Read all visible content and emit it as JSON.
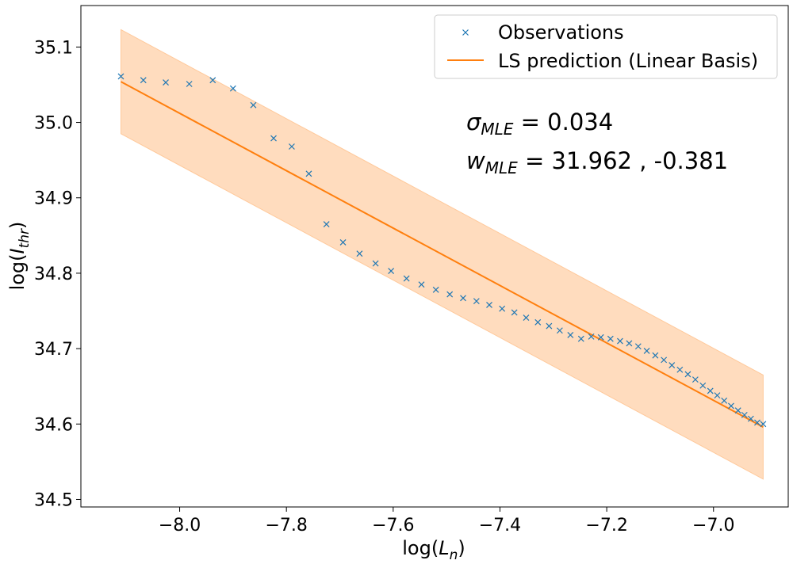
{
  "colors": {
    "observations": "#1f77b4",
    "prediction": "#ff7f0e",
    "band": "#ffdcbe",
    "band_edge": "#ffc99b"
  },
  "chart_data": {
    "type": "line",
    "xlabel": {
      "main": "log(",
      "var": "L",
      "sub": "n",
      "close": ")"
    },
    "ylabel": {
      "main": "log(",
      "var": "I",
      "sub": "thr",
      "close": ")"
    },
    "xlim": [
      -8.185,
      -6.86
    ],
    "ylim": [
      34.49,
      35.155
    ],
    "x_ticks": [
      -8.0,
      -7.8,
      -7.6,
      -7.4,
      -7.2,
      -7.0
    ],
    "x_tick_labels": [
      "−8.0",
      "−7.8",
      "−7.6",
      "−7.4",
      "−7.2",
      "−7.0"
    ],
    "y_ticks": [
      34.5,
      34.6,
      34.7,
      34.8,
      34.9,
      35.0,
      35.1
    ],
    "y_tick_labels": [
      "34.5",
      "34.6",
      "34.7",
      "34.8",
      "34.9",
      "35.0",
      "35.1"
    ],
    "grid": false,
    "legend_position": "top-right",
    "series": [
      {
        "name": "Observations",
        "kind": "scatter",
        "marker": "x",
        "x": [
          -8.11,
          -8.068,
          -8.026,
          -7.982,
          -7.938,
          -7.9,
          -7.862,
          -7.824,
          -7.79,
          -7.758,
          -7.725,
          -7.694,
          -7.663,
          -7.633,
          -7.604,
          -7.575,
          -7.547,
          -7.52,
          -7.494,
          -7.469,
          -7.444,
          -7.42,
          -7.396,
          -7.373,
          -7.351,
          -7.329,
          -7.308,
          -7.288,
          -7.268,
          -7.248,
          -7.229,
          -7.211,
          -7.193,
          -7.175,
          -7.158,
          -7.141,
          -7.125,
          -7.109,
          -7.093,
          -7.078,
          -7.063,
          -7.048,
          -7.034,
          -7.02,
          -7.006,
          -6.993,
          -6.98,
          -6.967,
          -6.954,
          -6.942,
          -6.93,
          -6.918,
          -6.907
        ],
        "y": [
          35.061,
          35.056,
          35.053,
          35.051,
          35.056,
          35.045,
          35.023,
          34.979,
          34.968,
          34.932,
          34.865,
          34.841,
          34.826,
          34.813,
          34.803,
          34.793,
          34.785,
          34.778,
          34.772,
          34.767,
          34.763,
          34.758,
          34.753,
          34.748,
          34.741,
          34.735,
          34.73,
          34.724,
          34.718,
          34.713,
          34.716,
          34.715,
          34.713,
          34.71,
          34.707,
          34.703,
          34.697,
          34.691,
          34.685,
          34.678,
          34.672,
          34.666,
          34.659,
          34.651,
          34.644,
          34.638,
          34.631,
          34.624,
          34.618,
          34.612,
          34.607,
          34.602,
          34.6
        ]
      },
      {
        "name": "LS prediction (Linear Basis)",
        "kind": "line",
        "x": [
          -8.11,
          -6.907
        ],
        "y": [
          35.054,
          34.596
        ],
        "band_lower": [
          34.985,
          34.527
        ],
        "band_upper": [
          35.123,
          34.665
        ]
      }
    ],
    "annotations": [
      {
        "sym": "σ",
        "sub": "MLE",
        "text": " = 0.034"
      },
      {
        "sym": "w",
        "sub": "MLE",
        "text": " = 31.962 , -0.381"
      }
    ]
  }
}
